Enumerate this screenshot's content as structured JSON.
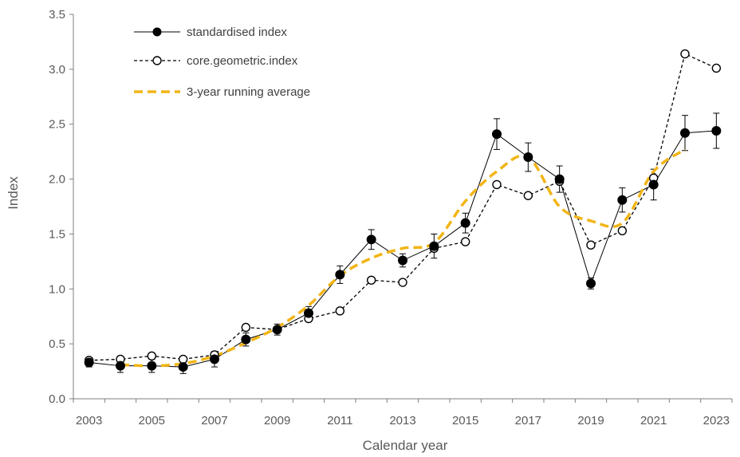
{
  "chart_data": {
    "type": "line",
    "xlabel": "Calendar year",
    "ylabel": "Index",
    "ylim": [
      0,
      3.5
    ],
    "yticks": [
      "0.0",
      "0.5",
      "1.0",
      "1.5",
      "2.0",
      "2.5",
      "3.0",
      "3.5"
    ],
    "x": [
      2003,
      2004,
      2005,
      2006,
      2007,
      2008,
      2009,
      2010,
      2011,
      2012,
      2013,
      2014,
      2015,
      2016,
      2017,
      2018,
      2019,
      2020,
      2021,
      2022,
      2023
    ],
    "xticks": [
      "2003",
      "2005",
      "2007",
      "2009",
      "2011",
      "2013",
      "2015",
      "2017",
      "2019",
      "2021",
      "2023"
    ],
    "grid": false,
    "legend_position": "top-left",
    "series": [
      {
        "name": "standardised index",
        "style": "solid line, filled circle markers, error bars",
        "color": "#000000",
        "values": [
          0.33,
          0.3,
          0.3,
          0.29,
          0.36,
          0.54,
          0.63,
          0.78,
          1.13,
          1.45,
          1.26,
          1.39,
          1.6,
          2.41,
          2.2,
          2.0,
          1.05,
          1.81,
          1.95,
          2.42,
          2.44
        ],
        "error_upper": [
          0.04,
          0.06,
          0.06,
          0.06,
          0.07,
          0.06,
          0.05,
          0.06,
          0.08,
          0.09,
          0.06,
          0.11,
          0.09,
          0.14,
          0.13,
          0.12,
          0.05,
          0.11,
          0.14,
          0.16,
          0.16
        ]
      },
      {
        "name": "core.geometric.index",
        "style": "dashed line, open circle markers",
        "color": "#000000",
        "values": [
          0.35,
          0.36,
          0.39,
          0.36,
          0.4,
          0.65,
          0.63,
          0.73,
          0.8,
          1.08,
          1.06,
          1.37,
          1.43,
          1.95,
          1.85,
          1.98,
          1.4,
          1.53,
          2.01,
          3.14,
          3.01
        ]
      },
      {
        "name": "3-year running average",
        "style": "thick dashed smooth line",
        "color": "#F2B517",
        "x": [
          2004,
          2005,
          2006,
          2007,
          2008,
          2009,
          2010,
          2011,
          2012,
          2013,
          2014,
          2015,
          2016,
          2017,
          2018,
          2019,
          2020,
          2021,
          2022
        ],
        "values": [
          0.31,
          0.3,
          0.32,
          0.39,
          0.51,
          0.65,
          0.85,
          1.12,
          1.28,
          1.37,
          1.42,
          1.8,
          2.07,
          2.2,
          1.75,
          1.62,
          1.6,
          2.07,
          2.27
        ]
      }
    ]
  }
}
